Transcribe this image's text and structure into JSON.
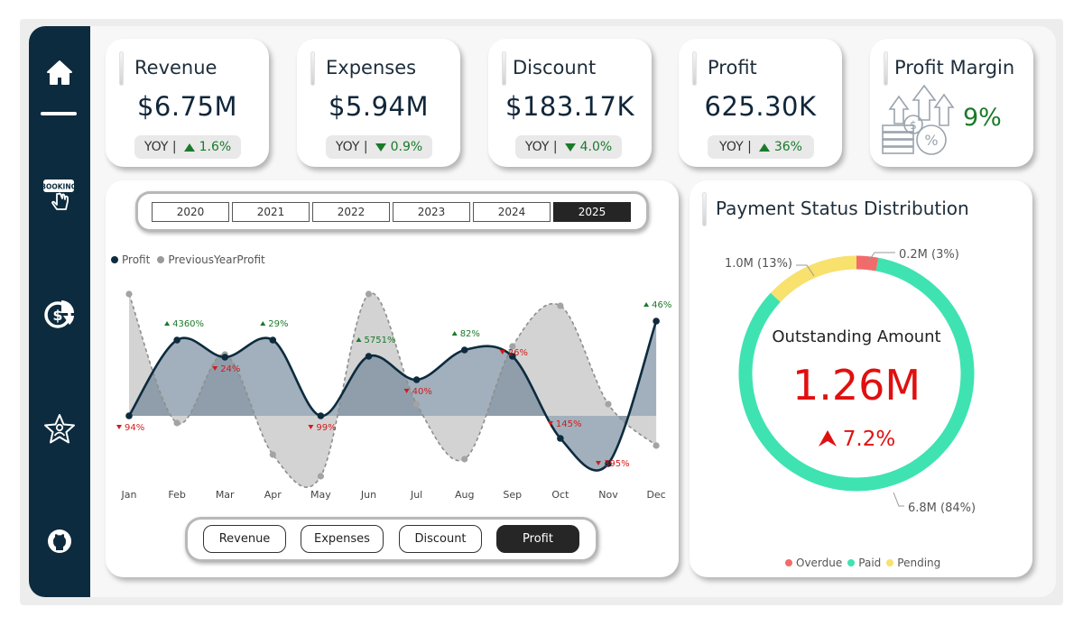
{
  "colors": {
    "sidebar": "#0d2b3e",
    "profit_line": "#0d2b3e",
    "prev_line": "#9a9a9a",
    "positive": "#1a7a2a",
    "negative": "#d41a1a",
    "paid": "#3ee3b1",
    "pending": "#f8e16c",
    "overdue": "#f26b6b"
  },
  "sidebar": {
    "items": [
      {
        "icon": "home-icon"
      },
      {
        "icon": "booking-icon",
        "label": "BOOKING"
      },
      {
        "icon": "finance-chart-icon"
      },
      {
        "icon": "star-user-icon"
      },
      {
        "icon": "github-icon"
      }
    ]
  },
  "kpis": [
    {
      "title": "Revenue",
      "value": "$6.75M",
      "yoy_label": "YOY |",
      "direction": "up",
      "change": "1.6%"
    },
    {
      "title": "Expenses",
      "value": "$5.94M",
      "yoy_label": "YOY |",
      "direction": "down",
      "change": "0.9%"
    },
    {
      "title": "Discount",
      "value": "$183.17K",
      "yoy_label": "YOY |",
      "direction": "down",
      "change": "4.0%"
    },
    {
      "title": "Profit",
      "value": "625.30K",
      "yoy_label": "YOY |",
      "direction": "up",
      "change": "36%"
    }
  ],
  "profit_margin": {
    "title": "Profit Margin",
    "value": "9%"
  },
  "years": {
    "options": [
      "2020",
      "2021",
      "2022",
      "2023",
      "2024",
      "2025"
    ],
    "selected": "2025"
  },
  "metrics": {
    "options": [
      "Revenue",
      "Expenses",
      "Discount",
      "Profit"
    ],
    "selected": "Profit"
  },
  "chart_legend": {
    "profit": "Profit",
    "previous": "PreviousYearProfit"
  },
  "chart_data": {
    "type": "line",
    "title": "",
    "categories": [
      "Jan",
      "Feb",
      "Mar",
      "Apr",
      "May",
      "Jun",
      "Jul",
      "Aug",
      "Sep",
      "Oct",
      "Nov",
      "Dec"
    ],
    "series": [
      {
        "name": "Profit",
        "values": [
          0,
          84,
          65,
          84,
          0,
          66,
          40,
          73,
          66,
          -25,
          -53,
          105
        ]
      },
      {
        "name": "PreviousYearProfit",
        "values": [
          135,
          -8,
          68,
          -43,
          -67,
          135,
          13,
          -48,
          77,
          122,
          13,
          -33
        ]
      }
    ],
    "ylim": [
      -80,
      145
    ],
    "change_labels": [
      {
        "month": "Jan",
        "direction": "down",
        "text": "94%"
      },
      {
        "month": "Feb",
        "direction": "up",
        "text": "4360%"
      },
      {
        "month": "Mar",
        "direction": "down",
        "text": "24%"
      },
      {
        "month": "Apr",
        "direction": "up",
        "text": "29%"
      },
      {
        "month": "May",
        "direction": "down",
        "text": "99%"
      },
      {
        "month": "Jun",
        "direction": "up",
        "text": "5751%"
      },
      {
        "month": "Jul",
        "direction": "down",
        "text": "40%"
      },
      {
        "month": "Aug",
        "direction": "up",
        "text": "82%"
      },
      {
        "month": "Sep",
        "direction": "down",
        "text": "26%"
      },
      {
        "month": "Oct",
        "direction": "down",
        "text": "145%"
      },
      {
        "month": "Nov",
        "direction": "down",
        "text": "395%"
      },
      {
        "month": "Dec",
        "direction": "up",
        "text": "46%"
      }
    ]
  },
  "payment": {
    "title": "Payment Status Distribution",
    "center_label": "Outstanding Amount",
    "center_value": "1.26M",
    "center_change": "7.2%",
    "legend": [
      "Overdue",
      "Paid",
      "Pending"
    ],
    "slices": [
      {
        "name": "Overdue",
        "share": 3,
        "label": "0.2M (3%)"
      },
      {
        "name": "Paid",
        "share": 84,
        "label": "6.8M (84%)"
      },
      {
        "name": "Pending",
        "share": 13,
        "label": "1.0M (13%)"
      }
    ]
  }
}
